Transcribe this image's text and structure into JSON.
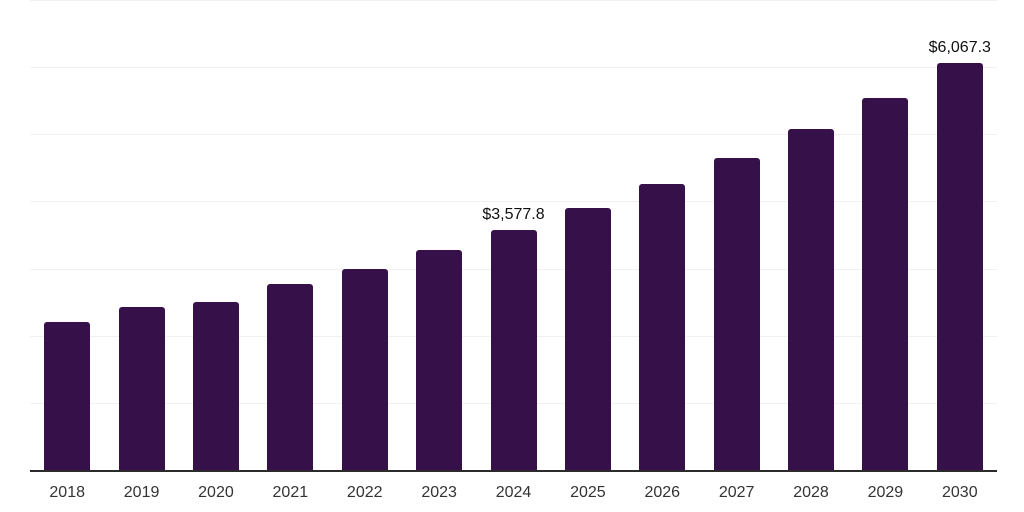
{
  "chart_data": {
    "type": "bar",
    "title": "",
    "xlabel": "",
    "ylabel": "",
    "categories": [
      "2018",
      "2019",
      "2020",
      "2021",
      "2022",
      "2023",
      "2024",
      "2025",
      "2026",
      "2027",
      "2028",
      "2029",
      "2030"
    ],
    "values": [
      2206,
      2430,
      2504,
      2773,
      2996,
      3280,
      3577.8,
      3906,
      4263,
      4651,
      5083,
      5545,
      6067.3
    ],
    "data_labels": [
      {
        "category": "2024",
        "text": "$3,577.8"
      },
      {
        "category": "2030",
        "text": "$6,067.3"
      }
    ],
    "ylim": [
      0,
      7000
    ],
    "gridline_interval": 1000,
    "grid": true,
    "legend": "none",
    "y_axis_tick_labels_visible": false,
    "colors": {
      "bar": "#361149",
      "gridline": "#F0F0F0",
      "axis_line": "#2B2B2B",
      "tick_text": "#333333",
      "data_label_text": "#111111",
      "background": "#FFFFFF"
    }
  }
}
